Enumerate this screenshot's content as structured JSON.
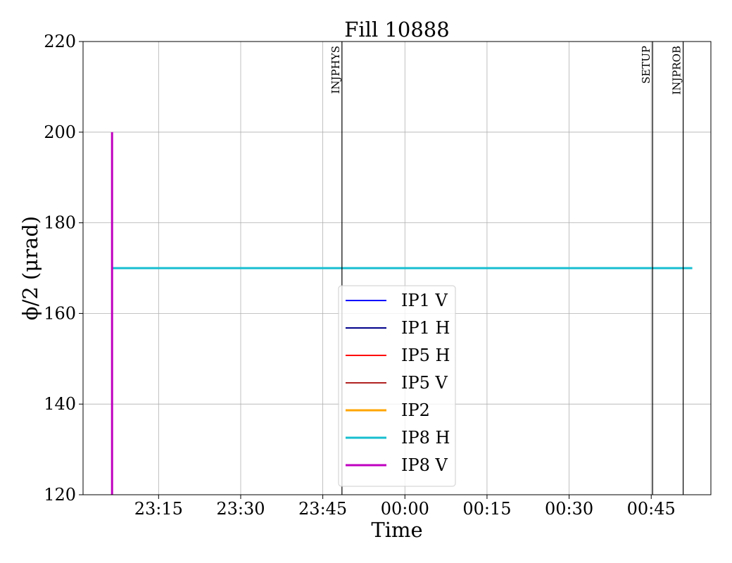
{
  "chart_data": {
    "type": "line",
    "title": "Fill 10888",
    "xlabel": "Time",
    "ylabel": "ϕ/2 (μrad)",
    "xlim": [
      "23:01:12",
      "00:55:54"
    ],
    "ylim": [
      120,
      220
    ],
    "xticks": [
      "23:15",
      "23:30",
      "23:45",
      "00:00",
      "00:15",
      "00:30",
      "00:45"
    ],
    "yticks": [
      120,
      140,
      160,
      180,
      200,
      220
    ],
    "grid": true,
    "legend_position": "bottom-center",
    "series": [
      {
        "name": "IP1 V",
        "color": "#0000ff",
        "width": 2,
        "points": []
      },
      {
        "name": "IP1 H",
        "color": "#00008b",
        "width": 2,
        "points": []
      },
      {
        "name": "IP5 H",
        "color": "#ff0000",
        "width": 2,
        "points": []
      },
      {
        "name": "IP5 V",
        "color": "#b22222",
        "width": 2,
        "points": []
      },
      {
        "name": "IP2",
        "color": "#ffa500",
        "width": 3,
        "points": []
      },
      {
        "name": "IP8 H",
        "color": "#17becf",
        "width": 3,
        "points": [
          [
            "23:06:30",
            170
          ],
          [
            "00:52:30",
            170
          ]
        ]
      },
      {
        "name": "IP8 V",
        "color": "#bf00bf",
        "width": 3,
        "points": [
          [
            "23:06:30",
            200
          ],
          [
            "23:06:30",
            120
          ]
        ]
      }
    ],
    "events": [
      {
        "label": "INJPHYS",
        "time": "23:48:30"
      },
      {
        "label": "SETUP",
        "time": "00:45:15"
      },
      {
        "label": "INJPROB",
        "time": "00:50:50"
      }
    ]
  }
}
